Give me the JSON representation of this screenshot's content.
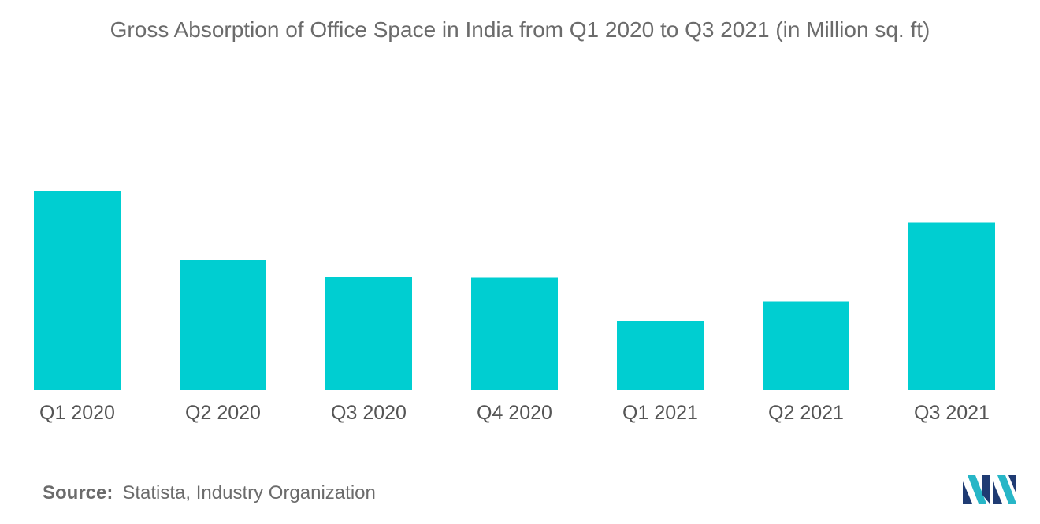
{
  "chart_data": {
    "type": "bar",
    "title": "Gross Absorption of Office Space in India from Q1 2020 to Q3 2021 (in Million sq. ft)",
    "categories": [
      "Q1 2020",
      "Q2 2020",
      "Q3 2020",
      "Q4 2020",
      "Q1 2021",
      "Q2 2021",
      "Q3 2021"
    ],
    "values": [
      10.1,
      6.6,
      5.75,
      5.7,
      3.5,
      4.5,
      8.5
    ],
    "ylim": [
      0,
      12
    ],
    "xlabel": "",
    "ylabel": "",
    "grid": false,
    "legend": "none",
    "bar_color": "#00CED1"
  },
  "source": {
    "label": "Source:",
    "text": "Statista, Industry Organization"
  },
  "logo": {
    "icon": "mordor-intelligence-logo-icon",
    "colors": [
      "#1f3b73",
      "#27b6c7"
    ]
  }
}
